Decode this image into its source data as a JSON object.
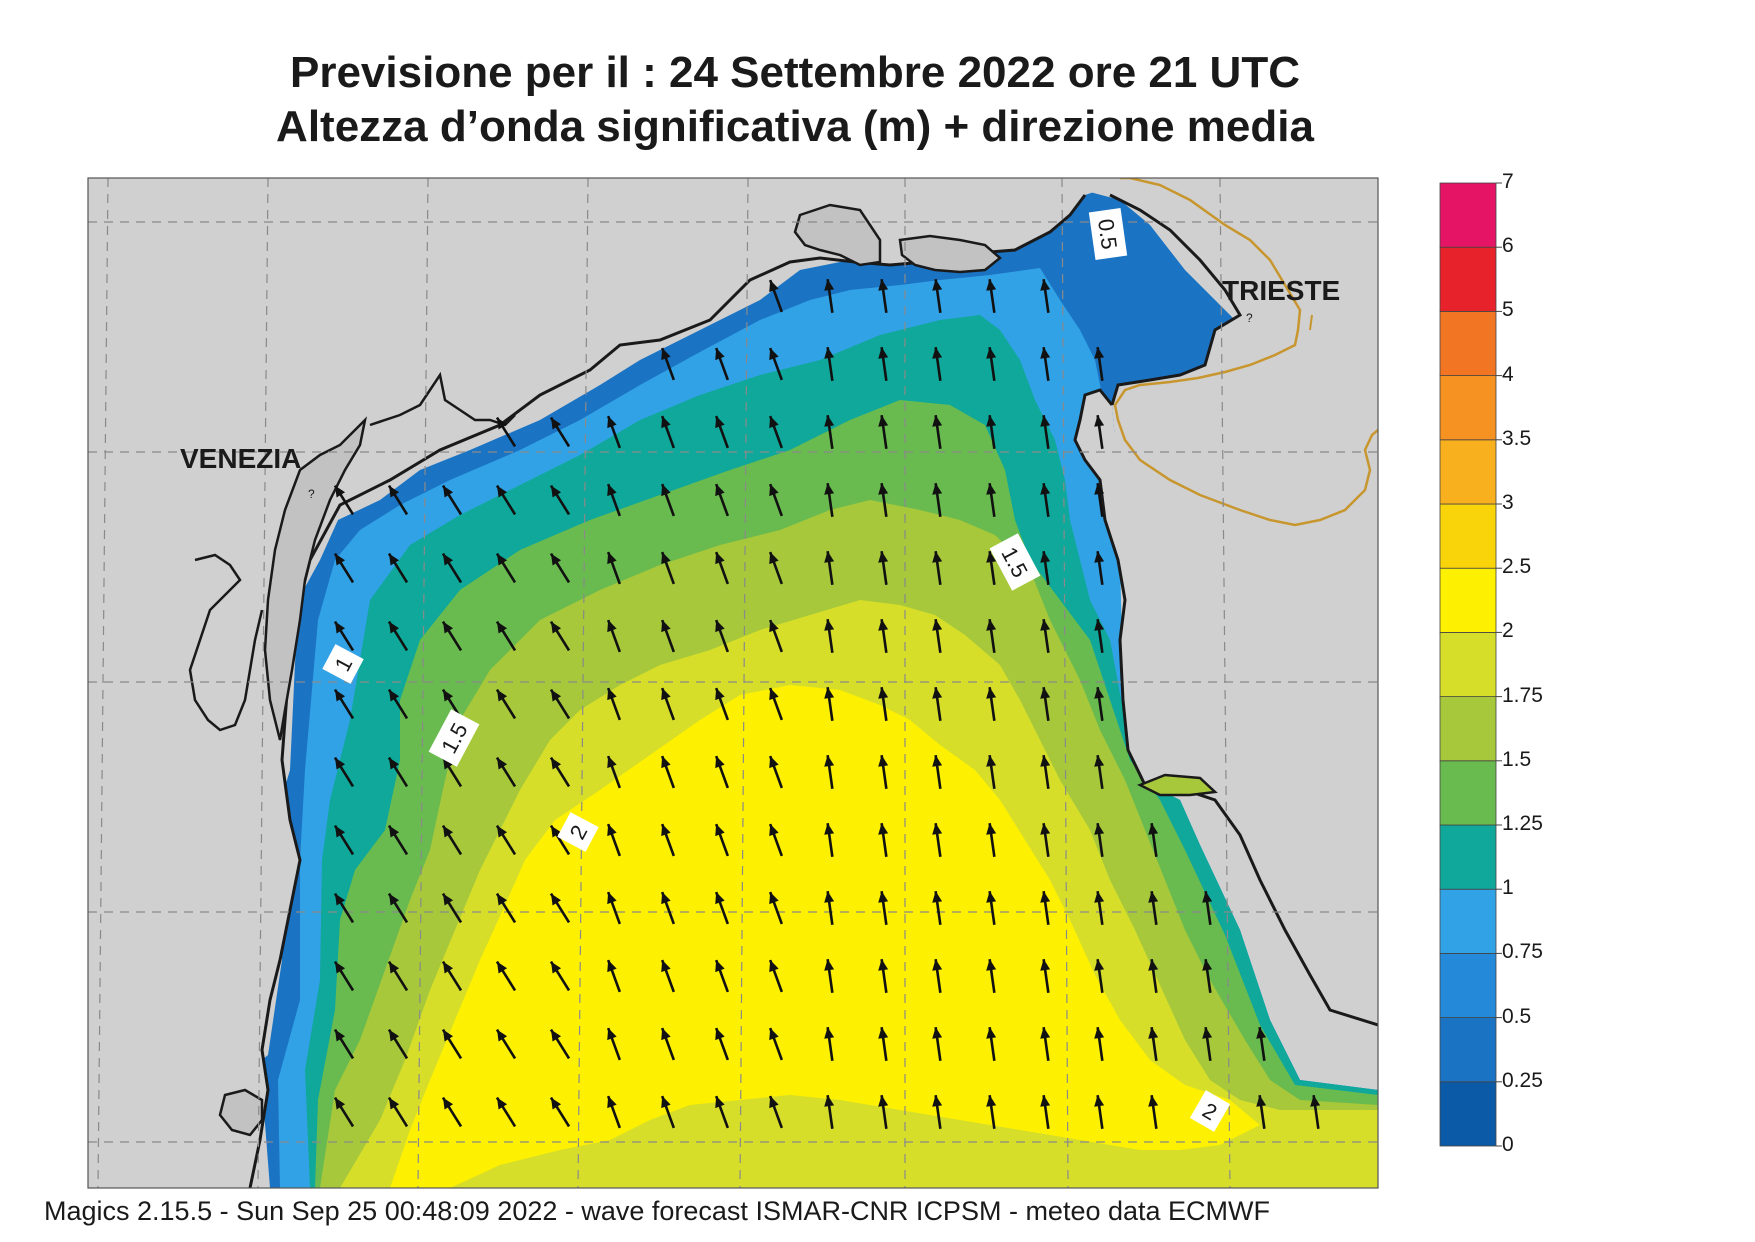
{
  "title": {
    "line1": "Previsione per il  :  24 Settembre 2022   ore 21 UTC",
    "line2": "Altezza d’onda significativa (m) + direzione media"
  },
  "places": {
    "venezia": "VENEZIA",
    "trieste": "TRIESTE"
  },
  "contour_labels": [
    "0.5",
    "1.5",
    "1",
    "1.5",
    "2",
    "2"
  ],
  "colorbar": {
    "levels": [
      "0",
      "0.25",
      "0.5",
      "0.75",
      "1",
      "1.25",
      "1.5",
      "1.75",
      "2",
      "2.5",
      "3",
      "3.5",
      "4",
      "5",
      "6",
      "7"
    ],
    "colors": [
      "#0a5aa8",
      "#1b73c4",
      "#2489d8",
      "#32a2e6",
      "#0fa89a",
      "#6abb4f",
      "#a6c83a",
      "#d6de2a",
      "#fdf000",
      "#fad40a",
      "#f9b01e",
      "#f59222",
      "#f27524",
      "#e8222a",
      "#e51465"
    ]
  },
  "palette": {
    "land": "#d0d0d0",
    "coast": "#1a1a1a",
    "grid": "#8a8a8a",
    "border": "#c8962e",
    "arrow": "#111111",
    "wave_0_5": "#1b73c4",
    "wave_0_75": "#32a2e6",
    "wave_1": "#0fa89a",
    "wave_1_25": "#6abb4f",
    "wave_1_5": "#a6c83a",
    "wave_1_75": "#d6de2a",
    "wave_2": "#fdf000"
  },
  "footer": "Magics 2.15.5 - Sun Sep 25 00:48:09 2022 - wave forecast  ISMAR-CNR  ICPSM - meteo data    ECMWF"
}
